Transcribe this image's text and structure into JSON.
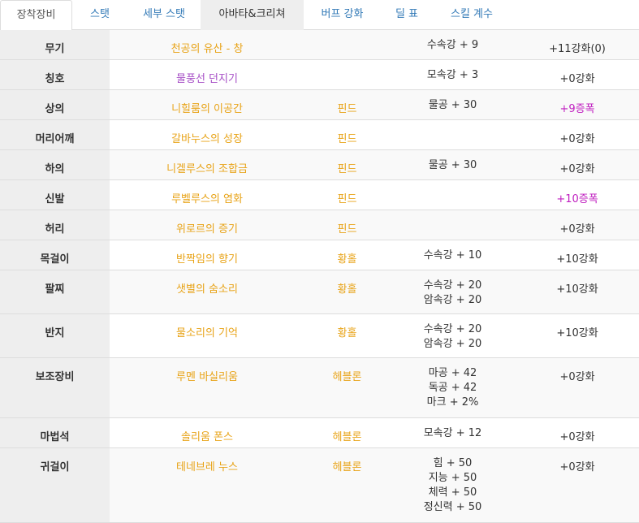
{
  "tabs": [
    {
      "label": "장착장비",
      "active": true
    },
    {
      "label": "스탯"
    },
    {
      "label": "세부 스탯"
    },
    {
      "label": "아바타&크리쳐",
      "hover": true
    },
    {
      "label": "버프 강화"
    },
    {
      "label": "딜 표"
    },
    {
      "label": "스킬 계수"
    }
  ],
  "equipment": [
    {
      "slot": "무기",
      "name": "천공의 유산 - 창",
      "type": "",
      "stats": [
        "수속강 + 9"
      ],
      "enhance": "+11강화(0)"
    },
    {
      "slot": "칭호",
      "name": "물풍선 던지기",
      "name_color": "purple",
      "type": "",
      "stats": [
        "모속강 + 3"
      ],
      "enhance": "+0강화"
    },
    {
      "slot": "상의",
      "name": "니힐룸의 이공간",
      "type": "핀드",
      "stats": [
        "물공 + 30"
      ],
      "enhance": "+9증폭",
      "enhance_color": "magenta"
    },
    {
      "slot": "머리어깨",
      "name": "갈바누스의 성장",
      "type": "핀드",
      "stats": [],
      "enhance": "+0강화"
    },
    {
      "slot": "하의",
      "name": "니겔루스의 조합금",
      "type": "핀드",
      "stats": [
        "물공 + 30"
      ],
      "enhance": "+0강화"
    },
    {
      "slot": "신발",
      "name": "루벨루스의 염화",
      "type": "핀드",
      "stats": [],
      "enhance": "+10증폭",
      "enhance_color": "magenta"
    },
    {
      "slot": "허리",
      "name": "위로르의 증기",
      "type": "핀드",
      "stats": [],
      "enhance": "+0강화"
    },
    {
      "slot": "목걸이",
      "name": "반짝임의 향기",
      "type": "황홀",
      "stats": [
        "수속강 + 10"
      ],
      "enhance": "+10강화"
    },
    {
      "slot": "팔찌",
      "name": "샛별의 숨소리",
      "type": "황홀",
      "stats": [
        "수속강 + 20",
        "암속강 + 20"
      ],
      "enhance": "+10강화"
    },
    {
      "slot": "반지",
      "name": "물소리의 기억",
      "type": "황홀",
      "stats": [
        "수속강 + 20",
        "암속강 + 20"
      ],
      "enhance": "+10강화"
    },
    {
      "slot": "보조장비",
      "name": "루멘 바실리움",
      "type": "헤블론",
      "stats": [
        "마공 + 42",
        "독공 + 42",
        "마크 + 2%"
      ],
      "enhance": "+0강화"
    },
    {
      "slot": "마법석",
      "name": "솔리움 폰스",
      "type": "헤블론",
      "stats": [
        "모속강 + 12"
      ],
      "enhance": "+0강화"
    },
    {
      "slot": "귀걸이",
      "name": "테네브레 누스",
      "type": "헤블론",
      "stats": [
        "힘 + 50",
        "지능 + 50",
        "체력 + 50",
        "정신력 + 50"
      ],
      "enhance": "+0강화"
    }
  ],
  "colors": {
    "item_name": "#e8a317",
    "title_name": "#a64ec6",
    "amplify": "#c020c0",
    "tab_link": "#337ab7"
  }
}
